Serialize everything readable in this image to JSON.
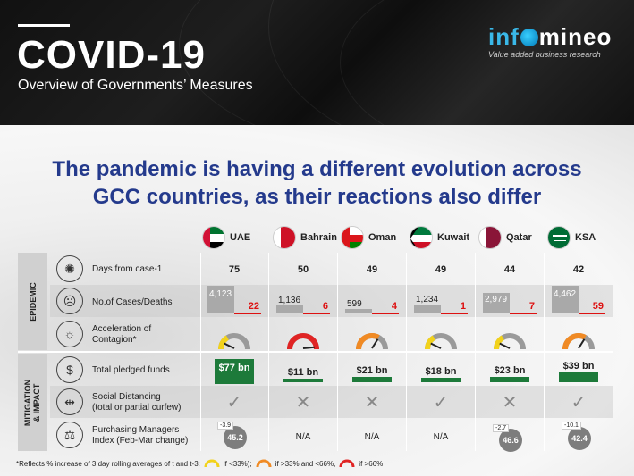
{
  "header": {
    "title": "COVID-19",
    "subtitle": "Overview of Governments’ Measures",
    "logo": "infomineo",
    "logo_tagline": "Value added business research"
  },
  "headline": {
    "line1": "The pandemic is having a different evolution across",
    "line2": "GCC countries, as their reactions also differ"
  },
  "countries": [
    "UAE",
    "Bahrain",
    "Oman",
    "Kuwait",
    "Qatar",
    "KSA"
  ],
  "sections": {
    "epidemic": "EPIDEMIC",
    "mitigation_line1": "MITIGATION",
    "mitigation_line2": "& IMPACT"
  },
  "rows": {
    "days": {
      "label": "Days from case-1",
      "icon": "virus-calendar-icon",
      "values": [
        "75",
        "50",
        "49",
        "49",
        "44",
        "42"
      ]
    },
    "cases": {
      "label": "No.of Cases/Deaths",
      "icon": "people-cross-icon",
      "cases": [
        "4,123",
        "1,136",
        "599",
        "1,234",
        "2,979",
        "4,462"
      ],
      "deaths": [
        "22",
        "6",
        "4",
        "1",
        "7",
        "59"
      ]
    },
    "acceleration": {
      "label_line1": "Acceleration of",
      "label_line2": "Contagion*",
      "icon": "spread-people-icon",
      "levels": [
        "low",
        "high",
        "medium",
        "low",
        "low",
        "medium"
      ]
    },
    "funds": {
      "label": "Total pledged funds",
      "icon": "money-hand-icon",
      "values": [
        "$77 bn",
        "$11 bn",
        "$21 bn",
        "$18 bn",
        "$23 bn",
        "$39 bn"
      ],
      "amounts_bn": [
        77,
        11,
        21,
        18,
        23,
        39
      ]
    },
    "distancing": {
      "label_line1": "Social Distancing",
      "label_line2": "(total or partial curfew)",
      "icon": "distancing-icon",
      "values": [
        "check",
        "cross",
        "cross",
        "check",
        "cross",
        "check"
      ]
    },
    "pmi": {
      "label_line1": "Purchasing Managers",
      "label_line2": "Index (Feb-Mar change)",
      "icon": "pmi-hand-icon",
      "values": [
        "45.2",
        "N/A",
        "N/A",
        "N/A",
        "46.6",
        "42.4"
      ],
      "changes": [
        "-3.9",
        "",
        "",
        "",
        "-2.7",
        "-10.1"
      ]
    }
  },
  "footnote": {
    "text": "*Reflects % increase of 3 day rolling averages of t and t-3:",
    "low": "if <33%);",
    "medium": "if >33% and <66%,",
    "high": "if >66%"
  },
  "colors": {
    "low": "#f2d21b",
    "medium": "#f08a24",
    "high": "#e02424",
    "green": "#1d7a3a",
    "headline": "#243a8c"
  }
}
